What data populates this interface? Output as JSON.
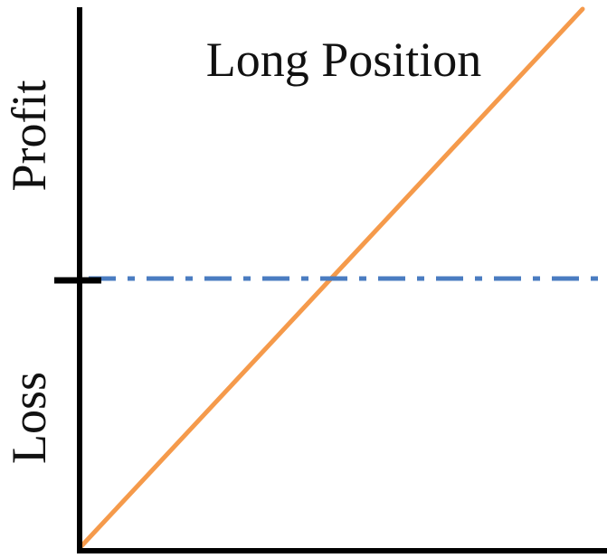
{
  "title": "Long Position",
  "labels": {
    "upper": "Profit",
    "lower": "Loss"
  },
  "colors": {
    "axis": "#000000",
    "payoff_line": "#F59A4B",
    "zero_line": "#4A7CC1"
  },
  "lines": {
    "payoff": "solid line rising from bottom-left to top-right",
    "zero_level": "dash-dot horizontal line"
  }
}
